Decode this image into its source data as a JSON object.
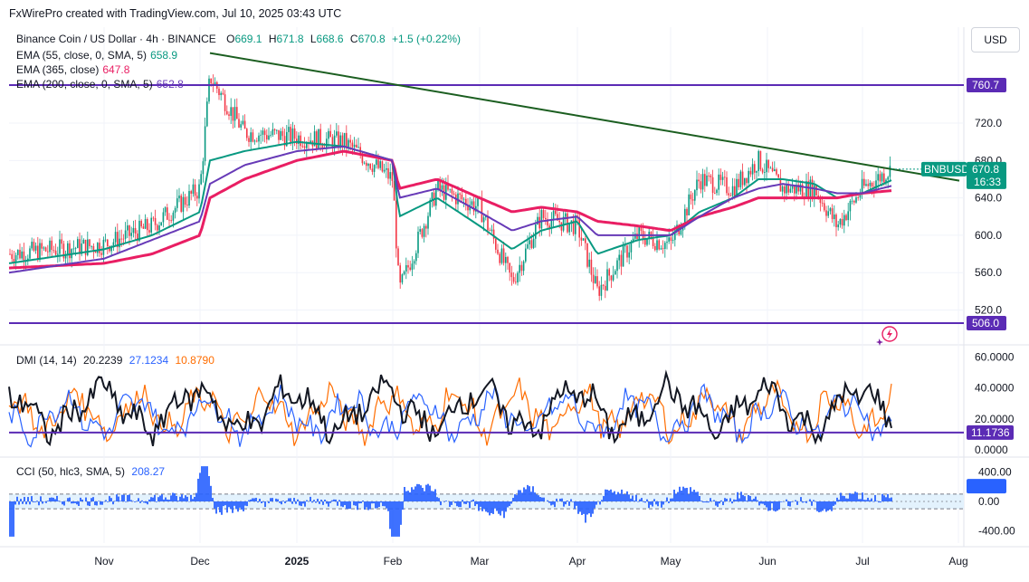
{
  "credit": "FxWirePro created with TradingView.com, Jul 10, 2025 03:43 UTC",
  "header": {
    "symbol_line": "Binance Coin / US Dollar · 4h · BINANCE",
    "o_label": "O",
    "o": "669.1",
    "h_label": "H",
    "h": "671.8",
    "l_label": "L",
    "l": "668.6",
    "c_label": "C",
    "c": "670.8",
    "change": "+1.5 (+0.22%)"
  },
  "indicators": [
    {
      "label": "EMA (55, close, 0, SMA, 5)",
      "value": "658.9",
      "color": "#089981"
    },
    {
      "label": "EMA (365, close)",
      "value": "647.8",
      "color": "#e91e63"
    },
    {
      "label": "EMA (200, close, 0, SMA, 5)",
      "value": "652.8",
      "color": "#673ab7"
    }
  ],
  "currency_button": "USD",
  "colors": {
    "up": "#089981",
    "down": "#f23645",
    "ema55": "#089981",
    "ema365": "#e91e63",
    "ema200": "#673ab7",
    "trendline": "#1b5e20",
    "hline": "#5b2bb5",
    "adx": "#131722",
    "di_plus": "#2962ff",
    "di_minus": "#ff6d00",
    "cci": "#2962ff"
  },
  "price_axis": {
    "ticks": [
      "760.0",
      "720.0",
      "680.0",
      "640.0",
      "600.0",
      "560.0",
      "520.0"
    ]
  },
  "levels": {
    "resistance": "760.7",
    "support": "506.0"
  },
  "last_price": {
    "symbol": "BNBUSD",
    "price": "670.8",
    "countdown": "16:33"
  },
  "dmi": {
    "label": "DMI (14, 14)",
    "adx": "20.2239",
    "di_plus": "27.1234",
    "di_minus": "10.8790",
    "ticks": [
      "60.0000",
      "40.0000",
      "20.0000",
      "0.0000"
    ],
    "level": "11.1736"
  },
  "cci": {
    "label": "CCI (50, hlc3, SMA, 5)",
    "value": "208.27",
    "ticks": [
      "400.00",
      "0.00",
      "-400.00"
    ]
  },
  "time_axis": [
    "Nov",
    "Dec",
    "2025",
    "Feb",
    "Mar",
    "Apr",
    "May",
    "Jun",
    "Jul",
    "Aug"
  ],
  "chart_data": {
    "type": "line",
    "series_type": "candlestick with EMA overlays (approximate)",
    "x": [
      "Oct 21",
      "Nov 1",
      "Nov 15",
      "Dec 1",
      "Dec 4",
      "Dec 15",
      "Jan 1",
      "Jan 15",
      "Feb 1",
      "Feb 3",
      "Feb 15",
      "Mar 1",
      "Mar 11",
      "Mar 20",
      "Apr 1",
      "Apr 7",
      "Apr 20",
      "May 1",
      "May 10",
      "May 20",
      "May 28",
      "Jun 5",
      "Jun 15",
      "Jun 22",
      "Jul 1",
      "Jul 10"
    ],
    "series": [
      {
        "name": "close",
        "values": [
          580,
          590,
          610,
          650,
          770,
          710,
          705,
          700,
          660,
          540,
          650,
          630,
          550,
          620,
          610,
          540,
          600,
          590,
          660,
          650,
          680,
          650,
          650,
          610,
          650,
          670.8
        ]
      },
      {
        "name": "EMA 55",
        "values": [
          570,
          585,
          600,
          625,
          680,
          690,
          700,
          695,
          680,
          620,
          640,
          610,
          585,
          605,
          615,
          580,
          595,
          600,
          625,
          640,
          660,
          660,
          655,
          640,
          645,
          658.9
        ]
      },
      {
        "name": "EMA 365",
        "values": [
          565,
          570,
          580,
          600,
          640,
          660,
          680,
          690,
          680,
          650,
          660,
          640,
          625,
          630,
          625,
          615,
          610,
          605,
          620,
          630,
          640,
          640,
          640,
          640,
          645,
          647.8
        ]
      },
      {
        "name": "EMA 200",
        "values": [
          560,
          575,
          595,
          615,
          655,
          675,
          690,
          695,
          680,
          640,
          650,
          625,
          605,
          615,
          620,
          600,
          600,
          600,
          620,
          640,
          650,
          655,
          650,
          645,
          645,
          652.8
        ]
      }
    ],
    "trendline": {
      "from": {
        "x": "Dec 4",
        "y": 795
      },
      "to": {
        "x": "Jul 10",
        "y": 670.8
      }
    },
    "horizontal_levels": [
      760.7,
      506.0
    ],
    "ylim": [
      495,
      800
    ]
  }
}
